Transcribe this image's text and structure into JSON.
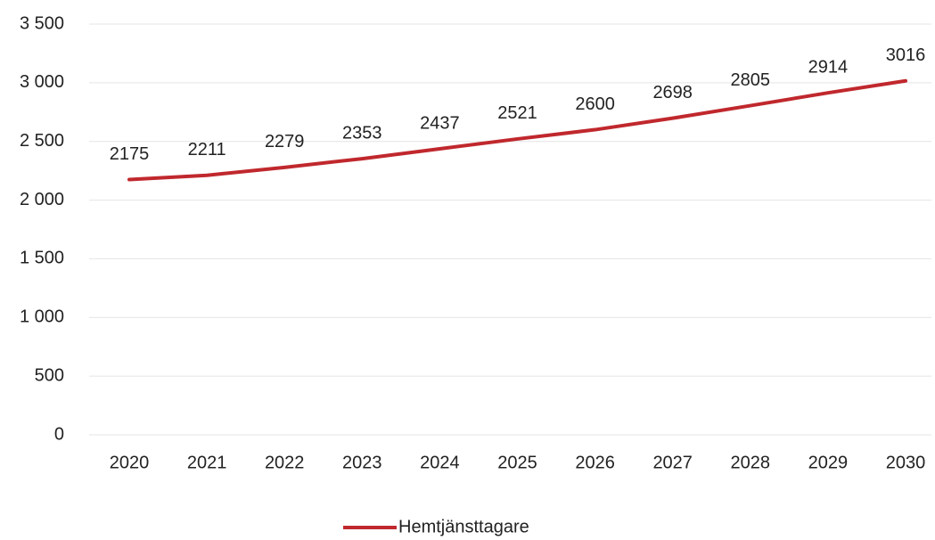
{
  "chart_data": {
    "type": "line",
    "categories": [
      "2020",
      "2021",
      "2022",
      "2023",
      "2024",
      "2025",
      "2026",
      "2027",
      "2028",
      "2029",
      "2030"
    ],
    "series": [
      {
        "name": "Hemtjänsttagare",
        "color": "#c0282d",
        "values": [
          2175,
          2211,
          2279,
          2353,
          2437,
          2521,
          2600,
          2698,
          2805,
          2914,
          3016
        ]
      }
    ],
    "ylim": [
      0,
      3500
    ],
    "yticks": [
      0,
      500,
      {
        "value": 1000,
        "label": "1 000"
      },
      {
        "value": 1500,
        "label": "1 500"
      },
      {
        "value": 2000,
        "label": "2 000"
      },
      {
        "value": 2500,
        "label": "2 500"
      },
      {
        "value": 3000,
        "label": "3 000"
      },
      {
        "value": 3500,
        "label": "3 500"
      }
    ],
    "grid": true,
    "legend": "bottom"
  }
}
